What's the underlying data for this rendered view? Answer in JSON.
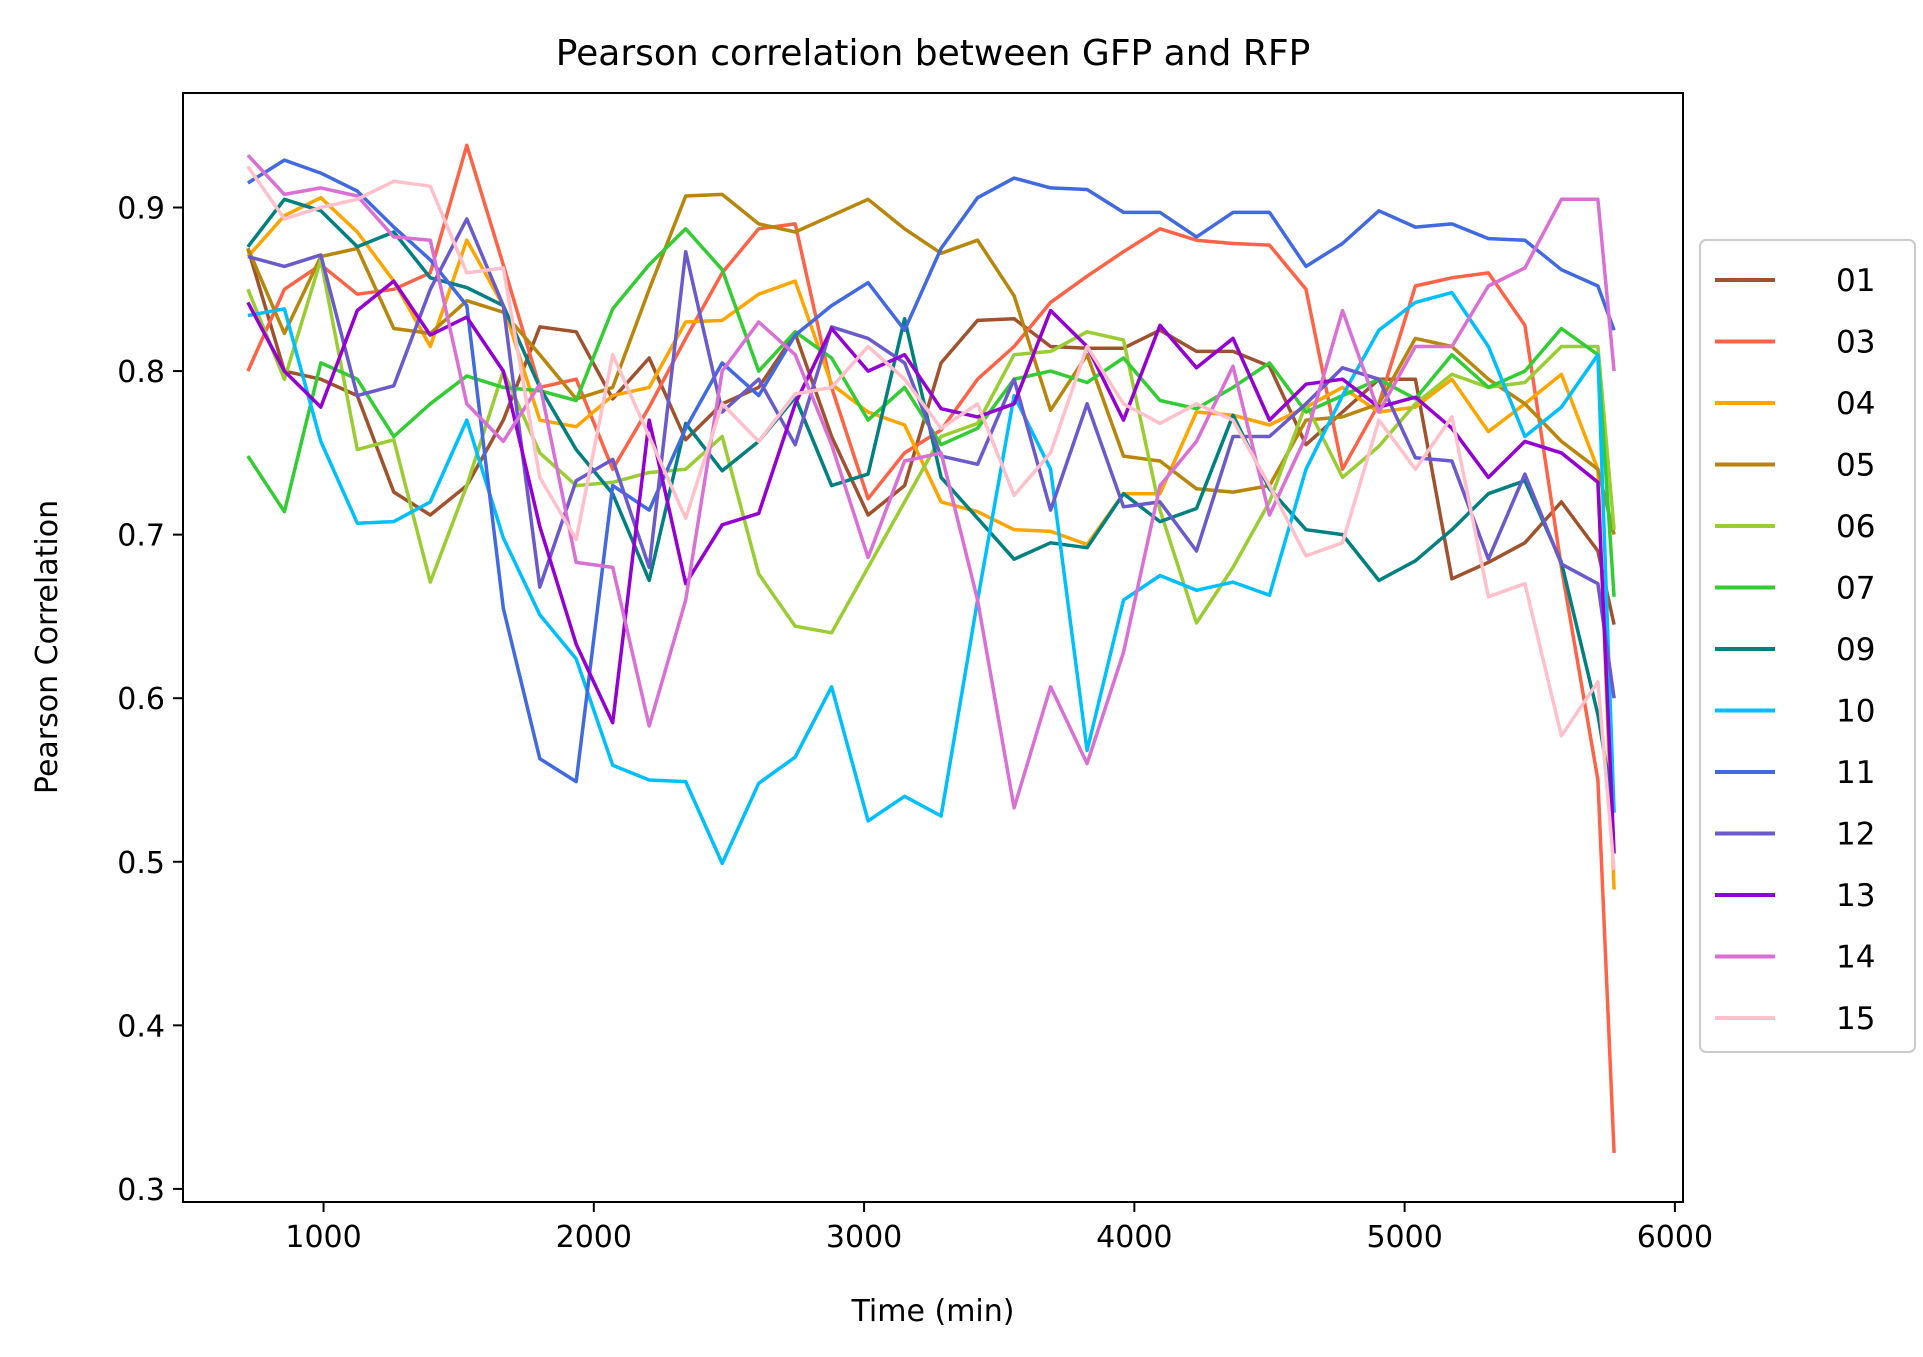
{
  "chart_data": {
    "type": "line",
    "title": "Pearson correlation between GFP and RFP",
    "xlabel": "Time (min)",
    "ylabel": "Pearson Correlation",
    "xlim": [
      480,
      6030
    ],
    "ylim": [
      0.292,
      0.97
    ],
    "xticks": [
      1000,
      2000,
      3000,
      4000,
      5000,
      6000
    ],
    "yticks": [
      0.3,
      0.4,
      0.5,
      0.6,
      0.7,
      0.8,
      0.9
    ],
    "legend_position": "right",
    "grid": false,
    "x": [
      720,
      855,
      990,
      1125,
      1260,
      1395,
      1530,
      1665,
      1800,
      1935,
      2070,
      2205,
      2340,
      2475,
      2610,
      2745,
      2880,
      3015,
      3150,
      3285,
      3420,
      3555,
      3690,
      3825,
      3960,
      4095,
      4230,
      4365,
      4500,
      4635,
      4770,
      4905,
      5040,
      5175,
      5310,
      5445,
      5580,
      5715,
      5775
    ],
    "series": [
      {
        "name": "01",
        "color": "#a0522d",
        "values": [
          0.875,
          0.8,
          0.795,
          0.785,
          0.726,
          0.712,
          0.73,
          0.77,
          0.827,
          0.824,
          0.783,
          0.808,
          0.758,
          0.78,
          0.79,
          0.823,
          0.76,
          0.712,
          0.73,
          0.805,
          0.831,
          0.832,
          0.815,
          0.814,
          0.814,
          0.825,
          0.812,
          0.812,
          0.803,
          0.755,
          0.775,
          0.795,
          0.795,
          0.673,
          0.683,
          0.695,
          0.72,
          0.69,
          0.645
        ]
      },
      {
        "name": "03",
        "color": "#ff6347",
        "values": [
          0.8,
          0.85,
          0.865,
          0.847,
          0.85,
          0.86,
          0.938,
          0.865,
          0.79,
          0.795,
          0.74,
          0.778,
          0.82,
          0.86,
          0.887,
          0.89,
          0.79,
          0.722,
          0.75,
          0.764,
          0.795,
          0.815,
          0.842,
          0.858,
          0.873,
          0.887,
          0.88,
          0.878,
          0.877,
          0.85,
          0.74,
          0.78,
          0.852,
          0.857,
          0.86,
          0.828,
          0.68,
          0.55,
          0.322
        ]
      },
      {
        "name": "04",
        "color": "#ffa500",
        "values": [
          0.87,
          0.895,
          0.906,
          0.885,
          0.855,
          0.815,
          0.88,
          0.84,
          0.77,
          0.766,
          0.785,
          0.79,
          0.83,
          0.831,
          0.847,
          0.855,
          0.792,
          0.775,
          0.767,
          0.72,
          0.714,
          0.703,
          0.702,
          0.694,
          0.725,
          0.725,
          0.775,
          0.773,
          0.767,
          0.778,
          0.79,
          0.775,
          0.778,
          0.795,
          0.763,
          0.78,
          0.798,
          0.74,
          0.483
        ]
      },
      {
        "name": "05",
        "color": "#b8860b",
        "values": [
          0.875,
          0.823,
          0.87,
          0.875,
          0.826,
          0.823,
          0.843,
          0.836,
          0.81,
          0.783,
          0.79,
          0.85,
          0.907,
          0.908,
          0.89,
          0.885,
          0.895,
          0.905,
          0.887,
          0.872,
          0.88,
          0.846,
          0.776,
          0.81,
          0.748,
          0.745,
          0.728,
          0.726,
          0.73,
          0.77,
          0.772,
          0.78,
          0.82,
          0.815,
          0.795,
          0.78,
          0.757,
          0.74,
          0.7
        ]
      },
      {
        "name": "06",
        "color": "#9acd32",
        "values": [
          0.85,
          0.795,
          0.868,
          0.752,
          0.758,
          0.671,
          0.73,
          0.8,
          0.75,
          0.73,
          0.732,
          0.738,
          0.74,
          0.76,
          0.676,
          0.644,
          0.64,
          0.68,
          0.72,
          0.76,
          0.768,
          0.81,
          0.812,
          0.824,
          0.819,
          0.715,
          0.646,
          0.68,
          0.72,
          0.78,
          0.735,
          0.754,
          0.78,
          0.798,
          0.79,
          0.793,
          0.815,
          0.815,
          0.703
        ]
      },
      {
        "name": "07",
        "color": "#32cd32",
        "values": [
          0.748,
          0.714,
          0.805,
          0.795,
          0.76,
          0.78,
          0.797,
          0.79,
          0.788,
          0.782,
          0.838,
          0.865,
          0.887,
          0.862,
          0.8,
          0.824,
          0.808,
          0.77,
          0.79,
          0.755,
          0.765,
          0.795,
          0.8,
          0.793,
          0.808,
          0.782,
          0.777,
          0.79,
          0.805,
          0.775,
          0.785,
          0.795,
          0.783,
          0.81,
          0.79,
          0.8,
          0.826,
          0.81,
          0.662
        ]
      },
      {
        "name": "09",
        "color": "#008080",
        "values": [
          0.876,
          0.905,
          0.898,
          0.876,
          0.885,
          0.857,
          0.851,
          0.84,
          0.79,
          0.752,
          0.725,
          0.672,
          0.768,
          0.739,
          0.757,
          0.784,
          0.73,
          0.737,
          0.832,
          0.735,
          0.71,
          0.685,
          0.695,
          0.692,
          0.725,
          0.708,
          0.716,
          0.773,
          0.728,
          0.703,
          0.7,
          0.672,
          0.684,
          0.703,
          0.725,
          0.733,
          0.683,
          0.59,
          0.53
        ]
      },
      {
        "name": "10",
        "color": "#00bfff",
        "values": [
          0.834,
          0.838,
          0.757,
          0.707,
          0.708,
          0.72,
          0.77,
          0.698,
          0.651,
          0.624,
          0.559,
          0.55,
          0.549,
          0.499,
          0.548,
          0.564,
          0.607,
          0.525,
          0.54,
          0.528,
          0.66,
          0.785,
          0.74,
          0.568,
          0.66,
          0.675,
          0.666,
          0.671,
          0.663,
          0.74,
          0.785,
          0.825,
          0.842,
          0.848,
          0.815,
          0.76,
          0.778,
          0.81,
          0.53
        ]
      },
      {
        "name": "11",
        "color": "#4169e1",
        "values": [
          0.915,
          0.929,
          0.921,
          0.91,
          0.888,
          0.868,
          0.84,
          0.655,
          0.563,
          0.549,
          0.73,
          0.715,
          0.765,
          0.805,
          0.785,
          0.822,
          0.84,
          0.854,
          0.825,
          0.875,
          0.906,
          0.918,
          0.912,
          0.911,
          0.897,
          0.897,
          0.882,
          0.897,
          0.897,
          0.864,
          0.878,
          0.898,
          0.888,
          0.89,
          0.881,
          0.88,
          0.862,
          0.852,
          0.825
        ]
      },
      {
        "name": "12",
        "color": "#6a5acd",
        "values": [
          0.87,
          0.864,
          0.871,
          0.785,
          0.791,
          0.85,
          0.893,
          0.84,
          0.668,
          0.733,
          0.746,
          0.68,
          0.873,
          0.775,
          0.795,
          0.755,
          0.827,
          0.82,
          0.805,
          0.748,
          0.743,
          0.795,
          0.715,
          0.78,
          0.717,
          0.72,
          0.69,
          0.76,
          0.76,
          0.78,
          0.802,
          0.795,
          0.747,
          0.745,
          0.685,
          0.737,
          0.682,
          0.67,
          0.6
        ]
      },
      {
        "name": "13",
        "color": "#9400d3",
        "values": [
          0.842,
          0.8,
          0.778,
          0.837,
          0.855,
          0.822,
          0.833,
          0.8,
          0.705,
          0.633,
          0.585,
          0.77,
          0.67,
          0.706,
          0.713,
          0.78,
          0.826,
          0.8,
          0.81,
          0.777,
          0.772,
          0.78,
          0.837,
          0.815,
          0.77,
          0.828,
          0.802,
          0.82,
          0.77,
          0.792,
          0.795,
          0.778,
          0.784,
          0.765,
          0.735,
          0.757,
          0.75,
          0.732,
          0.505
        ]
      },
      {
        "name": "14",
        "color": "#da70d6",
        "values": [
          0.932,
          0.908,
          0.912,
          0.907,
          0.882,
          0.88,
          0.78,
          0.757,
          0.792,
          0.683,
          0.68,
          0.583,
          0.66,
          0.8,
          0.83,
          0.81,
          0.755,
          0.686,
          0.745,
          0.75,
          0.66,
          0.533,
          0.607,
          0.56,
          0.628,
          0.73,
          0.757,
          0.803,
          0.712,
          0.76,
          0.837,
          0.775,
          0.815,
          0.815,
          0.852,
          0.863,
          0.905,
          0.905,
          0.8
        ]
      },
      {
        "name": "15",
        "color": "#ffc0cb",
        "values": [
          0.925,
          0.893,
          0.9,
          0.905,
          0.916,
          0.913,
          0.86,
          0.863,
          0.735,
          0.697,
          0.81,
          0.76,
          0.71,
          0.78,
          0.757,
          0.786,
          0.79,
          0.815,
          0.795,
          0.765,
          0.78,
          0.724,
          0.75,
          0.815,
          0.78,
          0.768,
          0.78,
          0.77,
          0.73,
          0.687,
          0.695,
          0.77,
          0.74,
          0.772,
          0.662,
          0.67,
          0.577,
          0.61,
          0.495
        ]
      }
    ]
  }
}
